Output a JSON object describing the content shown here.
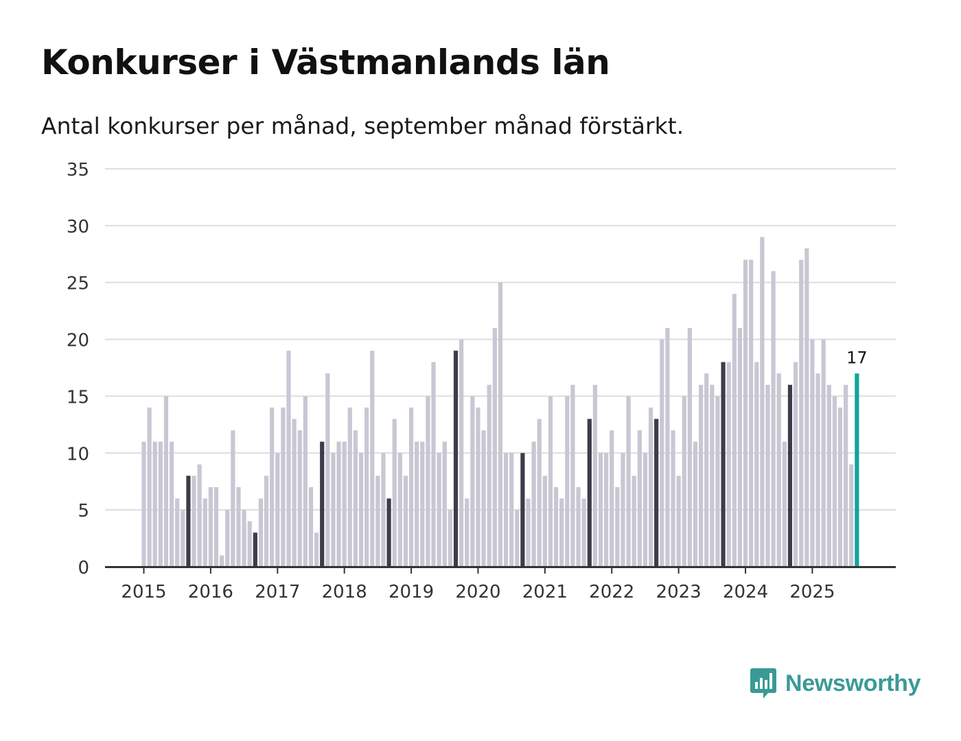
{
  "header": {
    "title": "Konkurser i Västmanlands län",
    "subtitle": "Antal konkurser per månad, september månad förstärkt."
  },
  "brand": {
    "name": "Newsworthy",
    "icon": "bar-chart-logo-icon"
  },
  "colors": {
    "bar": "#c8c7d3",
    "bar_highlight": "#3d3c4a",
    "bar_latest": "#14a39a",
    "grid": "#dddddd",
    "axis": "#333333",
    "brand": "#3a9a96"
  },
  "chart_data": {
    "type": "bar",
    "title": "Konkurser i Västmanlands län",
    "xlabel": "",
    "ylabel": "",
    "ylim": [
      0,
      35
    ],
    "yticks": [
      0,
      5,
      10,
      15,
      20,
      25,
      30,
      35
    ],
    "grid": true,
    "start": "2015-01",
    "highlight_month": "september",
    "xtick_labels": [
      "2015",
      "2016",
      "2017",
      "2018",
      "2019",
      "2020",
      "2021",
      "2022",
      "2023",
      "2024",
      "2025"
    ],
    "latest_label": "17",
    "series": [
      {
        "name": "Antal konkurser",
        "values": [
          11,
          14,
          11,
          11,
          15,
          11,
          6,
          5,
          8,
          8,
          9,
          6,
          7,
          7,
          1,
          5,
          12,
          7,
          5,
          4,
          3,
          6,
          8,
          14,
          10,
          14,
          19,
          13,
          12,
          15,
          7,
          3,
          11,
          17,
          10,
          11,
          11,
          14,
          12,
          10,
          14,
          19,
          8,
          10,
          6,
          13,
          10,
          8,
          14,
          11,
          11,
          15,
          18,
          10,
          11,
          5,
          19,
          20,
          6,
          15,
          14,
          12,
          16,
          21,
          25,
          10,
          10,
          5,
          10,
          6,
          11,
          13,
          8,
          15,
          7,
          6,
          15,
          16,
          7,
          6,
          13,
          16,
          10,
          10,
          12,
          7,
          10,
          15,
          8,
          12,
          10,
          14,
          13,
          20,
          21,
          12,
          8,
          15,
          21,
          11,
          16,
          17,
          16,
          15,
          18,
          18,
          24,
          21,
          27,
          27,
          18,
          29,
          16,
          26,
          17,
          11,
          16,
          18,
          27,
          28,
          20,
          17,
          20,
          16,
          15,
          14,
          16,
          9,
          17
        ]
      }
    ]
  }
}
